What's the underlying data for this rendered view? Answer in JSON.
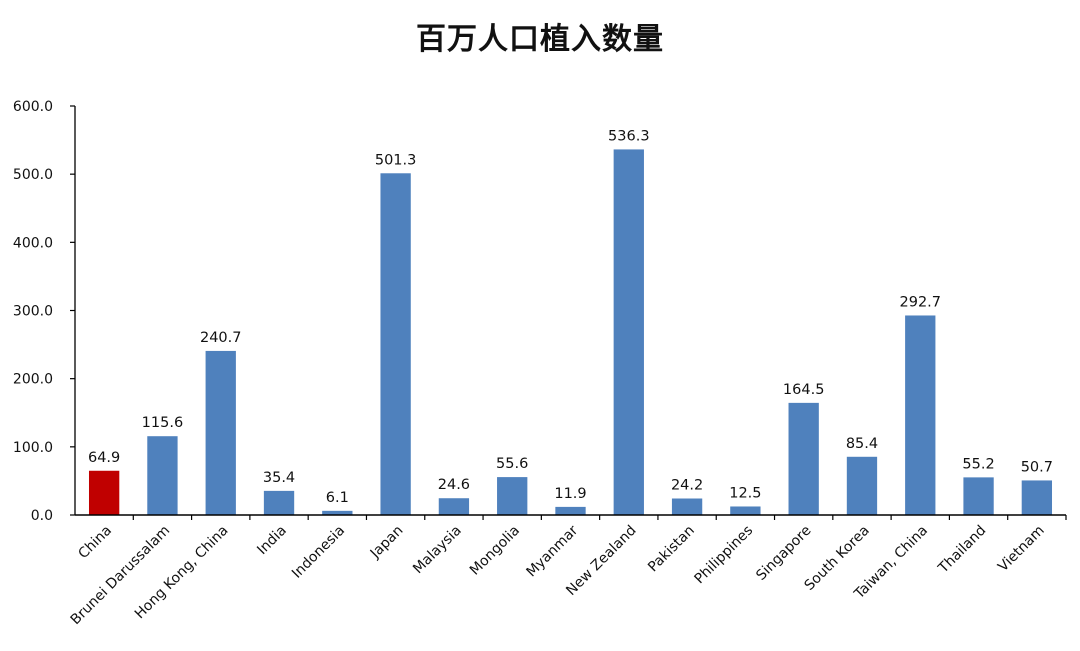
{
  "chart_data": {
    "type": "bar",
    "title": "百万人口植入数量",
    "xlabel": "",
    "ylabel": "",
    "ylim": [
      0,
      600
    ],
    "yticks": [
      0,
      100,
      200,
      300,
      400,
      500,
      600
    ],
    "ytick_labels": [
      "0.0",
      "100.0",
      "200.0",
      "300.0",
      "400.0",
      "500.0",
      "600.0"
    ],
    "categories": [
      "China",
      "Brunei Darussalam",
      "Hong Kong, China",
      "India",
      "Indonesia",
      "Japan",
      "Malaysia",
      "Mongolia",
      "Myanmar",
      "New Zealand",
      "Pakistan",
      "Philippines",
      "Singapore",
      "South Korea",
      "Taiwan, China",
      "Thailand",
      "Vietnam"
    ],
    "values": [
      64.9,
      115.6,
      240.7,
      35.4,
      6.1,
      501.3,
      24.6,
      55.6,
      11.9,
      536.3,
      24.2,
      12.5,
      164.5,
      85.4,
      292.7,
      55.2,
      50.7
    ],
    "value_labels": [
      "64.9",
      "115.6",
      "240.7",
      "35.4",
      "6.1",
      "501.3",
      "24.6",
      "55.6",
      "11.9",
      "536.3",
      "24.2",
      "12.5",
      "164.5",
      "85.4",
      "292.7",
      "55.2",
      "50.7"
    ],
    "grid": false,
    "legend": "none",
    "colors": {
      "default_bar": "#4F81BD",
      "highlight_bar": "#C00000",
      "highlight_category": "China",
      "axis": "#000000",
      "text": "#111111"
    }
  }
}
